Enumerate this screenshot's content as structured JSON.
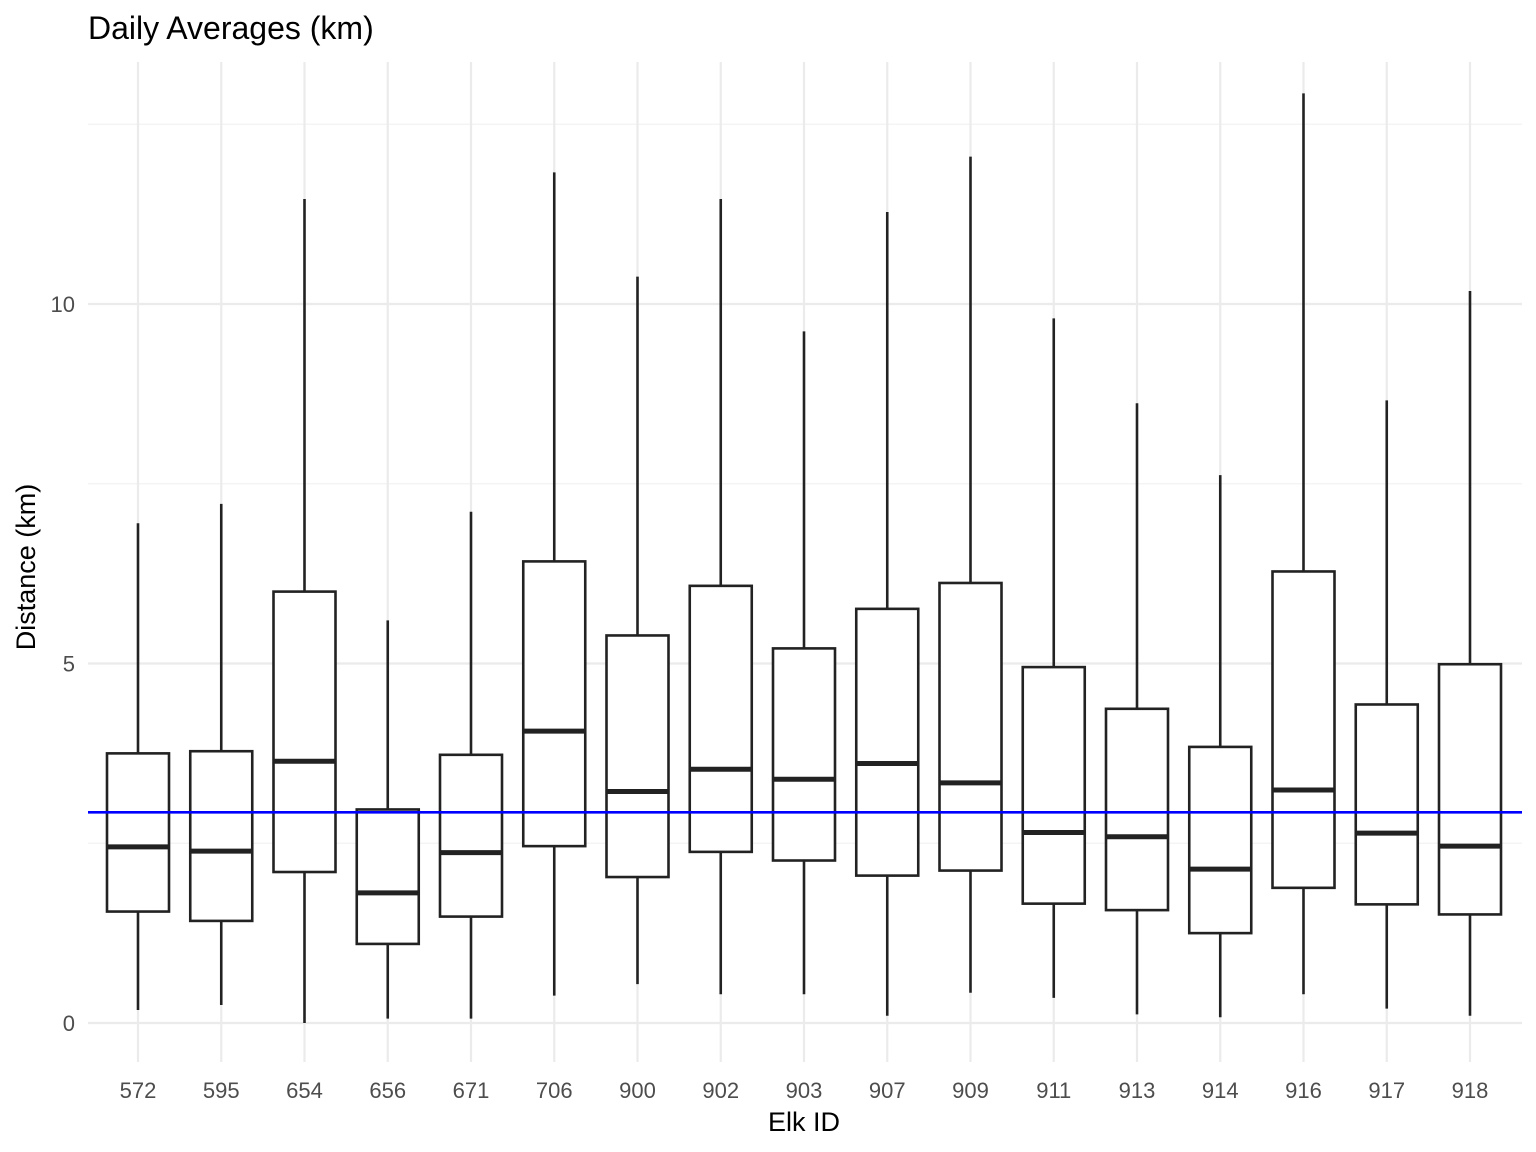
{
  "chart_data": {
    "type": "boxplot",
    "title": "Daily Averages (km)",
    "xlabel": "Elk ID",
    "ylabel": "Distance (km)",
    "ylim": [
      -0.6,
      13.5
    ],
    "yticks": [
      0,
      5,
      10
    ],
    "grid": true,
    "reference_line": {
      "y": 2.93,
      "color": "#0000ff"
    },
    "categories": [
      "572",
      "595",
      "654",
      "656",
      "671",
      "706",
      "900",
      "902",
      "903",
      "907",
      "909",
      "911",
      "913",
      "914",
      "916",
      "917",
      "918"
    ],
    "series": [
      {
        "boxes": [
          {
            "min": 0.18,
            "q1": 1.55,
            "median": 2.45,
            "q3": 3.75,
            "max": 6.95
          },
          {
            "min": 0.25,
            "q1": 1.42,
            "median": 2.39,
            "q3": 3.78,
            "max": 7.22
          },
          {
            "min": 0.0,
            "q1": 2.1,
            "median": 3.64,
            "q3": 6.0,
            "max": 11.46
          },
          {
            "min": 0.06,
            "q1": 1.1,
            "median": 1.81,
            "q3": 2.97,
            "max": 5.6
          },
          {
            "min": 0.06,
            "q1": 1.48,
            "median": 2.37,
            "q3": 3.73,
            "max": 7.11
          },
          {
            "min": 0.38,
            "q1": 2.46,
            "median": 4.06,
            "q3": 6.42,
            "max": 11.83
          },
          {
            "min": 0.54,
            "q1": 2.03,
            "median": 3.22,
            "q3": 5.39,
            "max": 10.38
          },
          {
            "min": 0.4,
            "q1": 2.38,
            "median": 3.53,
            "q3": 6.08,
            "max": 11.46
          },
          {
            "min": 0.4,
            "q1": 2.26,
            "median": 3.39,
            "q3": 5.21,
            "max": 9.62
          },
          {
            "min": 0.1,
            "q1": 2.05,
            "median": 3.61,
            "q3": 5.76,
            "max": 11.28
          },
          {
            "min": 0.42,
            "q1": 2.12,
            "median": 3.34,
            "q3": 6.12,
            "max": 12.05
          },
          {
            "min": 0.35,
            "q1": 1.66,
            "median": 2.65,
            "q3": 4.95,
            "max": 9.8
          },
          {
            "min": 0.12,
            "q1": 1.57,
            "median": 2.59,
            "q3": 4.37,
            "max": 8.62
          },
          {
            "min": 0.08,
            "q1": 1.25,
            "median": 2.14,
            "q3": 3.84,
            "max": 7.62
          },
          {
            "min": 0.4,
            "q1": 1.88,
            "median": 3.24,
            "q3": 6.28,
            "max": 12.93
          },
          {
            "min": 0.2,
            "q1": 1.65,
            "median": 2.64,
            "q3": 4.43,
            "max": 8.66
          },
          {
            "min": 0.1,
            "q1": 1.51,
            "median": 2.46,
            "q3": 4.99,
            "max": 10.18
          }
        ]
      }
    ]
  }
}
